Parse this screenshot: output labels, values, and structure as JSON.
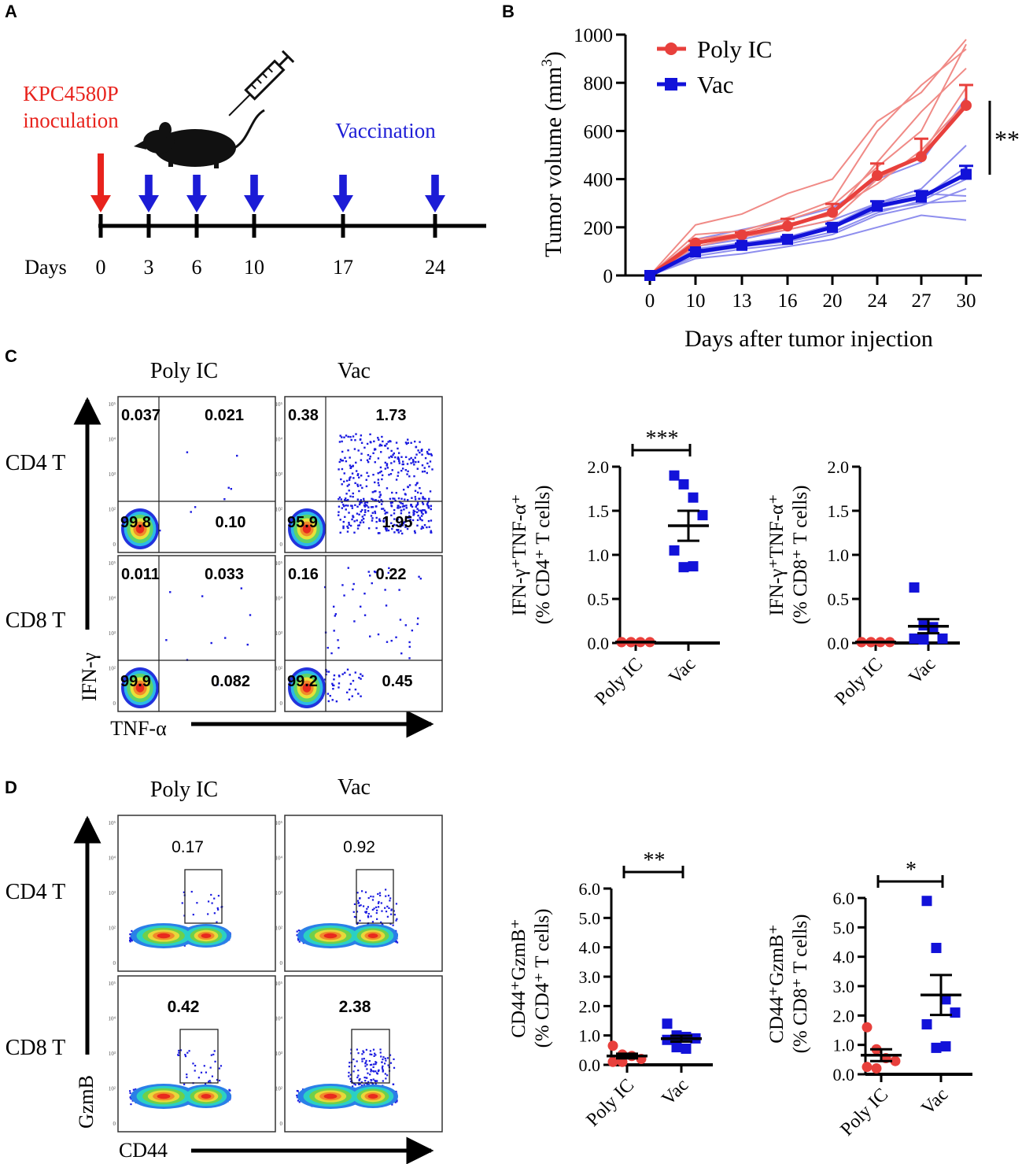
{
  "panel_labels": {
    "a": "A",
    "b": "B",
    "c": "C",
    "d": "D"
  },
  "panel_a": {
    "inoculation_line1": "KPC4580P",
    "inoculation_line2": "inoculation",
    "vaccination_label": "Vaccination",
    "days_label": "Days",
    "days": [
      "0",
      "3",
      "6",
      "10",
      "17",
      "24"
    ],
    "colors": {
      "inoculation": "#e8231d",
      "vaccination": "#1c1cd6"
    }
  },
  "panel_c": {
    "col_headers": [
      "Poly IC",
      "Vac"
    ],
    "row_labels": [
      "CD4 T",
      "CD8 T"
    ],
    "y_axis": "IFN-γ",
    "x_axis": "TNF-α",
    "quadrants": [
      {
        "ul": "0.037",
        "ur": "0.021",
        "ll": "99.8",
        "lr": "0.10"
      },
      {
        "ul": "0.38",
        "ur": "1.73",
        "ll": "95.9",
        "lr": "1.95"
      },
      {
        "ul": "0.011",
        "ur": "0.033",
        "ll": "99.9",
        "lr": "0.082"
      },
      {
        "ul": "0.16",
        "ur": "0.22",
        "ll": "99.2",
        "lr": "0.45"
      }
    ]
  },
  "panel_d": {
    "col_headers": [
      "Poly IC",
      "Vac"
    ],
    "row_labels": [
      "CD4 T",
      "CD8 T"
    ],
    "y_axis": "GzmB",
    "x_axis": "CD44",
    "gates": [
      "0.17",
      "0.92",
      "0.42",
      "2.38"
    ]
  },
  "chart_data": [
    {
      "id": "tumor-growth",
      "type": "line",
      "title": "",
      "xlabel": "Days after tumor injection",
      "ylabel_main": "Tumor volume (mm",
      "ylabel_sup": "3",
      "ylabel_tail": ")",
      "categories": [
        "0",
        "10",
        "13",
        "16",
        "20",
        "24",
        "27",
        "30"
      ],
      "ylim": [
        0,
        1000
      ],
      "yticks": [
        0,
        200,
        400,
        600,
        800,
        1000
      ],
      "significance": "**",
      "legend_position": "top-left",
      "series": [
        {
          "name": "Poly IC",
          "color": "#e8403c",
          "marker": "circle",
          "values": [
            0,
            135,
            168,
            205,
            262,
            415,
            493,
            706
          ],
          "errors": [
            0,
            8,
            10,
            30,
            35,
            50,
            75,
            85
          ]
        },
        {
          "name": "Vac",
          "color": "#1212d9",
          "marker": "square",
          "values": [
            0,
            98,
            125,
            150,
            200,
            288,
            325,
            420
          ],
          "errors": [
            0,
            8,
            8,
            10,
            15,
            20,
            25,
            35
          ]
        }
      ],
      "individual_curves": {
        "Poly IC": [
          [
            0,
            210,
            255,
            340,
            400,
            640,
            760,
            980
          ],
          [
            0,
            170,
            185,
            240,
            310,
            600,
            790,
            940
          ],
          [
            0,
            150,
            175,
            230,
            290,
            450,
            600,
            960
          ],
          [
            0,
            140,
            170,
            215,
            250,
            470,
            680,
            860
          ],
          [
            0,
            120,
            160,
            190,
            230,
            400,
            500,
            780
          ],
          [
            0,
            130,
            165,
            200,
            270,
            380,
            520,
            720
          ]
        ],
        "Vac": [
          [
            0,
            150,
            190,
            230,
            280,
            400,
            470,
            740
          ],
          [
            0,
            120,
            150,
            190,
            230,
            300,
            360,
            540
          ],
          [
            0,
            100,
            130,
            150,
            200,
            280,
            320,
            450
          ],
          [
            0,
            90,
            120,
            140,
            180,
            260,
            310,
            400
          ],
          [
            0,
            80,
            110,
            130,
            170,
            250,
            290,
            360
          ],
          [
            0,
            110,
            135,
            160,
            210,
            300,
            340,
            330
          ],
          [
            0,
            100,
            125,
            150,
            200,
            270,
            300,
            310
          ],
          [
            0,
            70,
            90,
            120,
            150,
            200,
            250,
            230
          ]
        ]
      }
    },
    {
      "id": "cd4-ifn-tnf",
      "type": "scatter",
      "ylabel_lines": [
        "IFN-γ⁺TNF-α⁺",
        "(% CD4⁺ T cells)"
      ],
      "categories": [
        "Poly IC",
        "Vac"
      ],
      "ylim": [
        0,
        2.0
      ],
      "yticks": [
        "0.0",
        "0.5",
        "1.0",
        "1.5",
        "2.0"
      ],
      "significance": "***",
      "series": [
        {
          "name": "Poly IC",
          "color": "#e8403c",
          "marker": "circle",
          "values": [
            0.01,
            0.01,
            0.01,
            0.01,
            0.01,
            0.01
          ],
          "mean": 0.01,
          "sem": 0.0
        },
        {
          "name": "Vac",
          "color": "#1212d9",
          "marker": "square",
          "values": [
            1.9,
            1.8,
            1.65,
            1.45,
            1.05,
            0.86,
            0.87
          ],
          "mean": 1.33,
          "sem": 0.17
        }
      ]
    },
    {
      "id": "cd8-ifn-tnf",
      "type": "scatter",
      "ylabel_lines": [
        "IFN-γ⁺TNF-α⁺",
        "(% CD8⁺ T cells)"
      ],
      "categories": [
        "Poly IC",
        "Vac"
      ],
      "ylim": [
        0,
        2.0
      ],
      "yticks": [
        "0.0",
        "0.5",
        "1.0",
        "1.5",
        "2.0"
      ],
      "significance": "",
      "series": [
        {
          "name": "Poly IC",
          "color": "#e8403c",
          "marker": "circle",
          "values": [
            0.01,
            0.01,
            0.01,
            0.01,
            0.01,
            0.01
          ],
          "mean": 0.01,
          "sem": 0.0
        },
        {
          "name": "Vac",
          "color": "#1212d9",
          "marker": "square",
          "values": [
            0.63,
            0.2,
            0.18,
            0.05,
            0.05,
            0.04
          ],
          "mean": 0.19,
          "sem": 0.08
        }
      ]
    },
    {
      "id": "cd4-cd44-gzmb",
      "type": "scatter",
      "ylabel_lines": [
        "CD44⁺GzmB⁺",
        "(% CD4⁺ T cells)"
      ],
      "categories": [
        "Poly IC",
        "Vac"
      ],
      "ylim": [
        0,
        6.0
      ],
      "yticks": [
        "0.0",
        "1.0",
        "2.0",
        "3.0",
        "4.0",
        "5.0",
        "6.0"
      ],
      "significance": "**",
      "series": [
        {
          "name": "Poly IC",
          "color": "#e8403c",
          "marker": "circle",
          "values": [
            0.65,
            0.35,
            0.3,
            0.2,
            0.1,
            0.1
          ],
          "mean": 0.3,
          "sem": 0.08
        },
        {
          "name": "Vac",
          "color": "#1212d9",
          "marker": "square",
          "values": [
            1.4,
            1.0,
            0.95,
            0.9,
            0.85,
            0.6,
            0.55
          ],
          "mean": 0.89,
          "sem": 0.1
        }
      ]
    },
    {
      "id": "cd8-cd44-gzmb",
      "type": "scatter",
      "ylabel_lines": [
        "CD44⁺GzmB⁺",
        "(% CD8⁺ T cells)"
      ],
      "categories": [
        "Poly IC",
        "Vac"
      ],
      "ylim": [
        0,
        6.0
      ],
      "yticks": [
        "0.0",
        "1.0",
        "2.0",
        "3.0",
        "4.0",
        "5.0",
        "6.0"
      ],
      "significance": "*",
      "series": [
        {
          "name": "Poly IC",
          "color": "#e8403c",
          "marker": "circle",
          "values": [
            1.6,
            0.85,
            0.55,
            0.45,
            0.25,
            0.2
          ],
          "mean": 0.65,
          "sem": 0.2
        },
        {
          "name": "Vac",
          "color": "#1212d9",
          "marker": "square",
          "values": [
            5.9,
            4.3,
            2.55,
            2.1,
            1.7,
            0.9,
            0.95
          ],
          "mean": 2.7,
          "sem": 0.68
        }
      ]
    }
  ]
}
